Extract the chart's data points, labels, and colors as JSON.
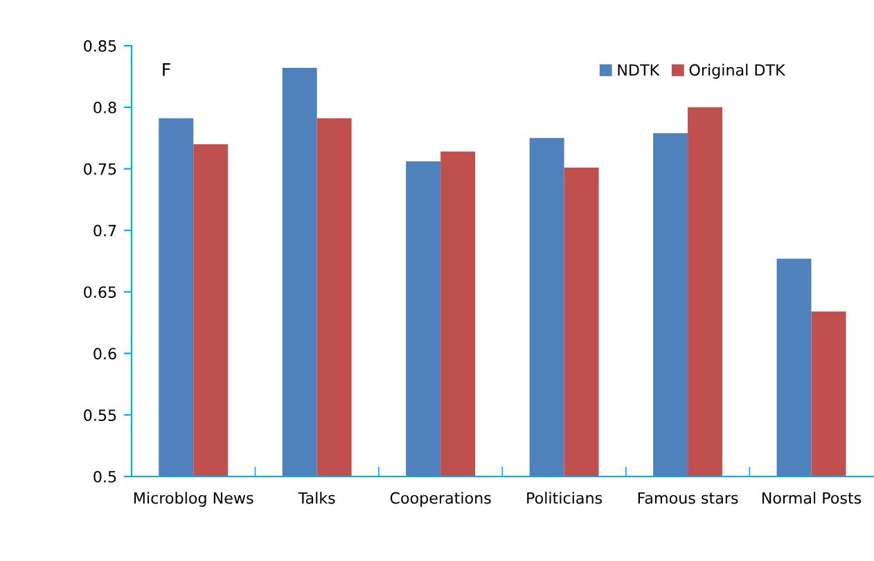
{
  "chart_data": {
    "type": "bar",
    "annotations": [
      "F"
    ],
    "categories": [
      "Microblog News",
      "Talks",
      "Cooperations",
      "Politicians",
      "Famous stars",
      "Normal Posts"
    ],
    "series": [
      {
        "name": "NDTK",
        "color": "#4f81bd",
        "values": [
          0.791,
          0.832,
          0.756,
          0.775,
          0.779,
          0.677
        ]
      },
      {
        "name": "Original DTK",
        "color": "#c0504d",
        "values": [
          0.77,
          0.791,
          0.764,
          0.751,
          0.8,
          0.634
        ]
      }
    ],
    "ylim": [
      0.5,
      0.85
    ],
    "yticks": [
      0.5,
      0.55,
      0.6,
      0.65,
      0.7,
      0.75,
      0.8,
      0.85
    ],
    "grid": false,
    "legend": "top right"
  }
}
